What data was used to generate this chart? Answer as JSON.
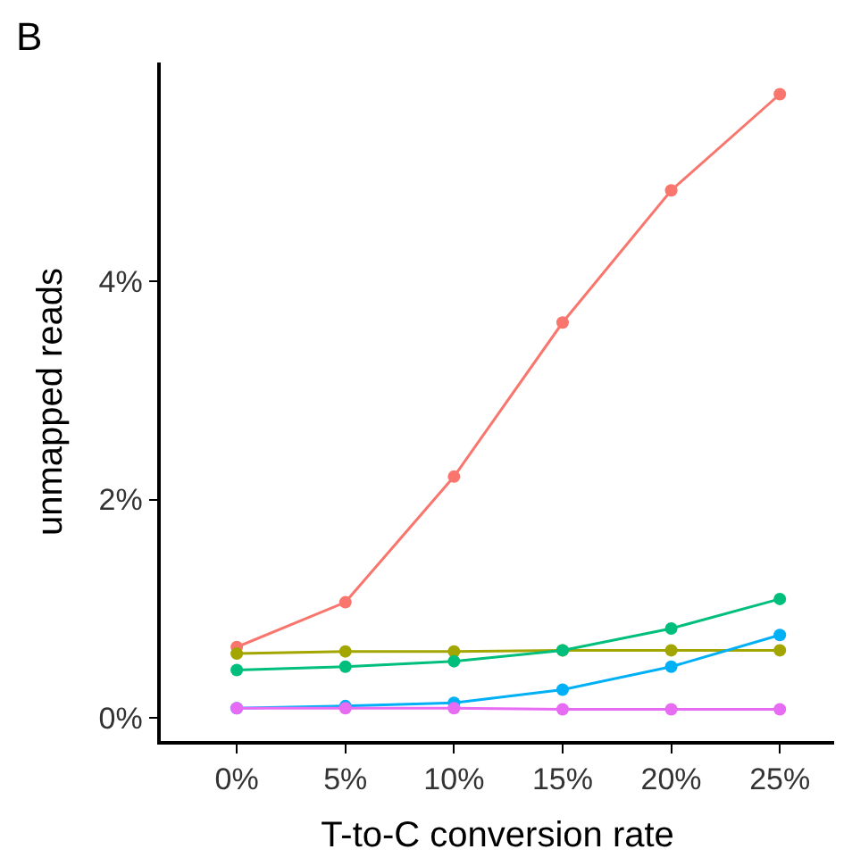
{
  "chart_data": {
    "type": "line",
    "xlabel": "T-to-C conversion rate",
    "ylabel": "unmapped reads",
    "annotations": [
      "B"
    ],
    "categories": [
      "0%",
      "5%",
      "10%",
      "15%",
      "20%",
      "25%"
    ],
    "series": [
      {
        "color": "#F8766D",
        "values": [
          0.65,
          1.06,
          2.21,
          3.62,
          4.83,
          5.71
        ]
      },
      {
        "color": "#A3A500",
        "values": [
          0.59,
          0.61,
          0.61,
          0.62,
          0.62,
          0.62
        ]
      },
      {
        "color": "#00BF7D",
        "values": [
          0.44,
          0.47,
          0.52,
          0.62,
          0.82,
          1.09
        ]
      },
      {
        "color": "#00B0F6",
        "values": [
          0.09,
          0.11,
          0.14,
          0.26,
          0.47,
          0.76
        ]
      },
      {
        "color": "#E76BF3",
        "values": [
          0.09,
          0.09,
          0.09,
          0.08,
          0.08,
          0.08
        ]
      }
    ],
    "ylim": [
      -0.21,
      6.0
    ],
    "yticks": [
      {
        "value": 0,
        "label": "0%"
      },
      {
        "value": 2,
        "label": "2%"
      },
      {
        "value": 4,
        "label": "4%"
      }
    ],
    "marker": "circle",
    "line_style": "solid",
    "legend": false
  }
}
